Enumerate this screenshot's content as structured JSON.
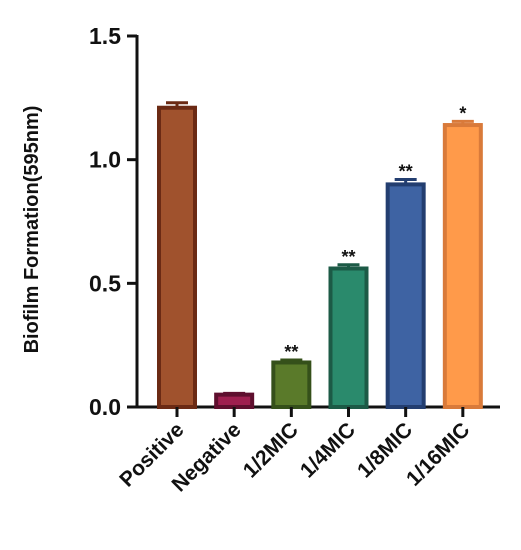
{
  "chart_data": {
    "type": "bar",
    "title": "",
    "xlabel": "",
    "ylabel": "Biofilm Formation(595nm)",
    "ylim": [
      0,
      1.5
    ],
    "yticks": [
      "0.0",
      "0.5",
      "1.0",
      "1.5"
    ],
    "ytick_values": [
      0,
      0.5,
      1.0,
      1.5
    ],
    "categories": [
      "Positive",
      "Negative",
      "1/2MIC",
      "1/4MIC",
      "1/8MIC",
      "1/16MIC"
    ],
    "values": [
      1.21,
      0.05,
      0.18,
      0.56,
      0.9,
      1.14
    ],
    "errors": [
      0.02,
      0.005,
      0.01,
      0.015,
      0.02,
      0.015
    ],
    "significance": [
      "",
      "",
      "**",
      "**",
      "**",
      "*"
    ],
    "colors": {
      "fill": [
        "#a0522d",
        "#9e1f4f",
        "#5a7a2a",
        "#2a8a6c",
        "#3e63a3",
        "#ff9a4a"
      ],
      "edge": [
        "#6b2a14",
        "#5e0f2e",
        "#35501a",
        "#1c5a46",
        "#233e70",
        "#d97a3a"
      ]
    },
    "grid": false,
    "legend": "none"
  }
}
